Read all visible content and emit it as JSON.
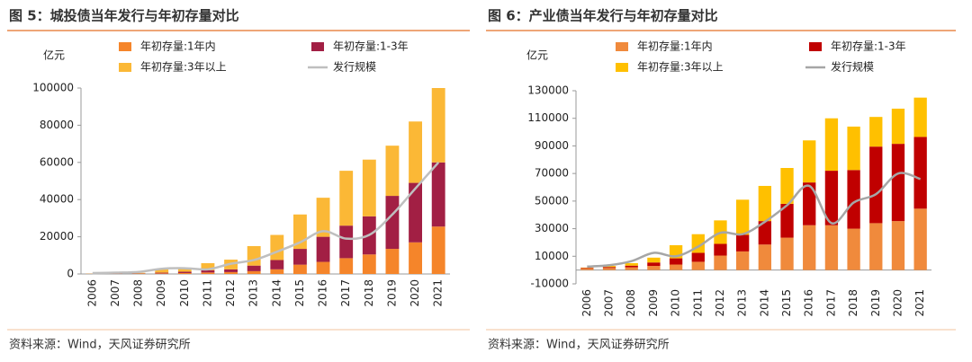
{
  "chart_data": [
    {
      "type": "bar",
      "stacked": true,
      "title": "图 5：城投债当年发行与年初存量对比",
      "y_label": "亿元",
      "source": "资料来源：Wind，天风证券研究所",
      "categories": [
        "2006",
        "2007",
        "2008",
        "2009",
        "2010",
        "2011",
        "2012",
        "2013",
        "2014",
        "2015",
        "2016",
        "2017",
        "2018",
        "2019",
        "2020",
        "2021"
      ],
      "series": [
        {
          "name": "年初存量:1年内",
          "type": "bar",
          "color": "#f5852a",
          "values": [
            50,
            100,
            150,
            300,
            500,
            800,
            1000,
            1500,
            2500,
            5000,
            6500,
            8500,
            10500,
            13500,
            17000,
            25500
          ]
        },
        {
          "name": "年初存量:1-3年",
          "type": "bar",
          "color": "#a21f44",
          "values": [
            50,
            100,
            150,
            400,
            700,
            1200,
            1500,
            3000,
            5000,
            8500,
            13500,
            17500,
            20500,
            28500,
            32000,
            34500
          ]
        },
        {
          "name": "年初存量:3年以上",
          "type": "bar",
          "color": "#fbb836",
          "values": [
            100,
            200,
            300,
            1700,
            2200,
            3800,
            5200,
            10500,
            13500,
            18500,
            21000,
            29500,
            30500,
            27000,
            33000,
            40000
          ]
        },
        {
          "name": "发行规模",
          "type": "line",
          "color": "#bfbfbf",
          "values": [
            500,
            700,
            1100,
            2800,
            3100,
            2500,
            5500,
            7500,
            12000,
            17000,
            23000,
            19000,
            21000,
            32000,
            46000,
            60000
          ]
        }
      ],
      "ylim": [
        0,
        100000
      ],
      "yticks": [
        0,
        20000,
        40000,
        60000,
        80000,
        100000
      ]
    },
    {
      "type": "bar",
      "stacked": true,
      "title": "图 6：产业债当年发行与年初存量对比",
      "y_label": "亿元",
      "source": "资料来源：Wind，天风证券研究所",
      "categories": [
        "2006",
        "2007",
        "2008",
        "2009",
        "2010",
        "2011",
        "2012",
        "2013",
        "2014",
        "2015",
        "2016",
        "2017",
        "2018",
        "2019",
        "2020",
        "2021"
      ],
      "series": [
        {
          "name": "年初存量:1年内",
          "type": "bar",
          "color": "#f08a3c",
          "values": [
            1000,
            1500,
            2000,
            3000,
            4000,
            6000,
            10500,
            13500,
            18500,
            23500,
            32500,
            32500,
            30000,
            34000,
            35500,
            44500
          ]
        },
        {
          "name": "年初存量:1-3年",
          "type": "bar",
          "color": "#c00000",
          "values": [
            500,
            700,
            1200,
            2500,
            4500,
            6500,
            8500,
            12000,
            17000,
            24500,
            31000,
            39500,
            42500,
            55500,
            56000,
            52000
          ]
        },
        {
          "name": "年初存量:3年以上",
          "type": "bar",
          "color": "#ffc000",
          "values": [
            300,
            800,
            1800,
            3500,
            9500,
            13500,
            17000,
            25500,
            25500,
            26000,
            30500,
            38000,
            31500,
            21500,
            25500,
            28500
          ]
        },
        {
          "name": "发行规模",
          "type": "line",
          "color": "#a6a6a6",
          "values": [
            2500,
            3500,
            6500,
            12500,
            10000,
            17000,
            27000,
            26000,
            35000,
            47000,
            61000,
            34000,
            49000,
            55000,
            70000,
            66000
          ]
        }
      ],
      "ylim": [
        -10000,
        130000
      ],
      "yticks": [
        -10000,
        10000,
        30000,
        50000,
        70000,
        90000,
        110000,
        130000
      ]
    }
  ]
}
